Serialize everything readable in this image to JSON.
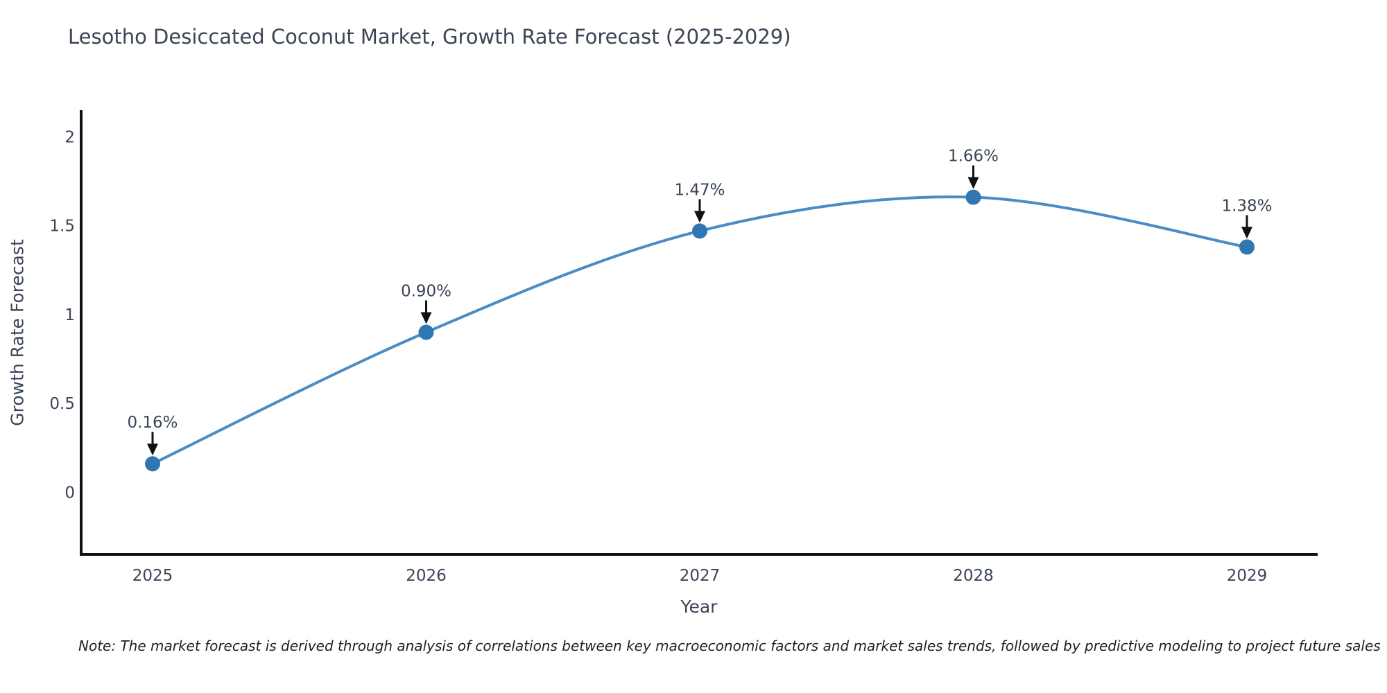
{
  "chart_data": {
    "type": "line",
    "title": "Lesotho Desiccated Coconut Market, Growth Rate Forecast (2025-2029)",
    "xlabel": "Year",
    "ylabel": "Growth Rate Forecast",
    "x": [
      2025,
      2026,
      2027,
      2028,
      2029
    ],
    "series": [
      {
        "name": "Growth Rate Forecast",
        "values": [
          0.16,
          0.9,
          1.47,
          1.66,
          1.38
        ]
      }
    ],
    "point_labels": [
      "0.16%",
      "0.90%",
      "1.47%",
      "1.66%",
      "1.38%"
    ],
    "yticks": [
      0,
      0.5,
      1,
      1.5,
      2
    ],
    "ylim": [
      -0.35,
      2.15
    ],
    "grid": false,
    "legend": "none",
    "line_smoothing": "spline",
    "note": "Note: The market forecast is derived through analysis of correlations between key macroeconomic factors and market sales trends, followed by predictive modeling to project future sales",
    "colors": {
      "line": "#4a8cc6",
      "marker": "#3077b2",
      "axis": "#111111",
      "text": "#3a4556",
      "annotation": "#111111",
      "note_text": "#1f1f1f"
    }
  }
}
